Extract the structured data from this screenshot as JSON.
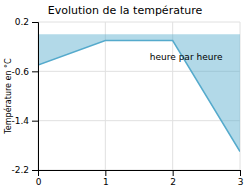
{
  "chart_data": {
    "type": "area",
    "title": "Evolution de la température",
    "ylabel": "Température en °C",
    "x": [
      0,
      1,
      2,
      3
    ],
    "values": [
      -0.5,
      -0.1,
      -0.1,
      -1.9
    ],
    "color": "#55aacc",
    "xlim": [
      0,
      3
    ],
    "ylim": [
      -2.2,
      0.2
    ],
    "xticks": [
      0,
      1,
      2,
      3
    ],
    "yticks": [
      0.2,
      -0.6,
      -1.4,
      -2.2
    ],
    "grid": true,
    "annotations": [
      {
        "text": "heure par heure",
        "x": 2.2,
        "y": -0.38
      }
    ]
  }
}
